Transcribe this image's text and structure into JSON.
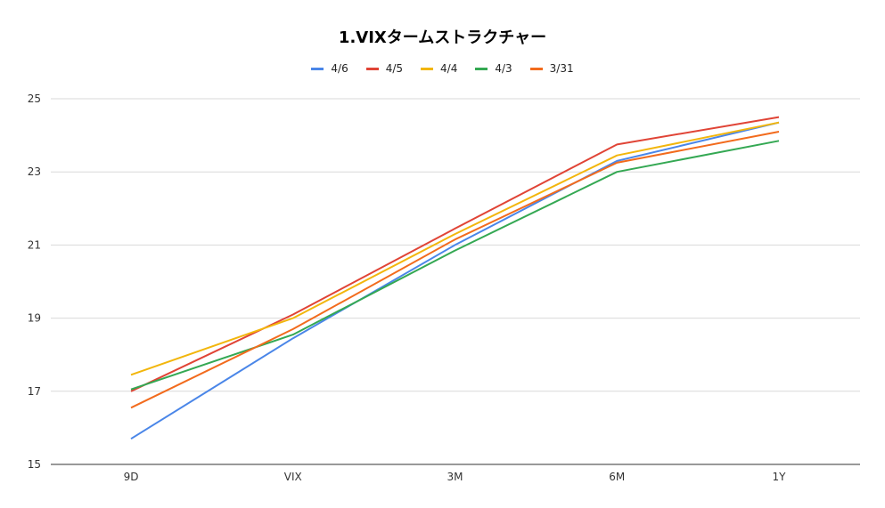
{
  "chart_data": {
    "type": "line",
    "title": "1.VIXタームストラクチャー",
    "xlabel": "",
    "ylabel": "",
    "categories": [
      "9D",
      "VIX",
      "3M",
      "6M",
      "1Y"
    ],
    "ylim": [
      15,
      25
    ],
    "yticks": [
      "15",
      "17",
      "19",
      "21",
      "23",
      "25"
    ],
    "grid": true,
    "legend_position": "top",
    "series": [
      {
        "name": "4/6",
        "color": "#4A86E8",
        "values": [
          15.7,
          18.45,
          21.0,
          23.3,
          24.35
        ]
      },
      {
        "name": "4/5",
        "color": "#E04436",
        "values": [
          17.0,
          19.1,
          21.45,
          23.75,
          24.5
        ]
      },
      {
        "name": "4/4",
        "color": "#F2B60C",
        "values": [
          17.45,
          19.0,
          21.3,
          23.45,
          24.35
        ]
      },
      {
        "name": "4/3",
        "color": "#34A853",
        "values": [
          17.05,
          18.55,
          20.85,
          23.0,
          23.85
        ]
      },
      {
        "name": "3/31",
        "color": "#F26B1D",
        "values": [
          16.55,
          18.7,
          21.15,
          23.25,
          24.1
        ]
      }
    ]
  }
}
